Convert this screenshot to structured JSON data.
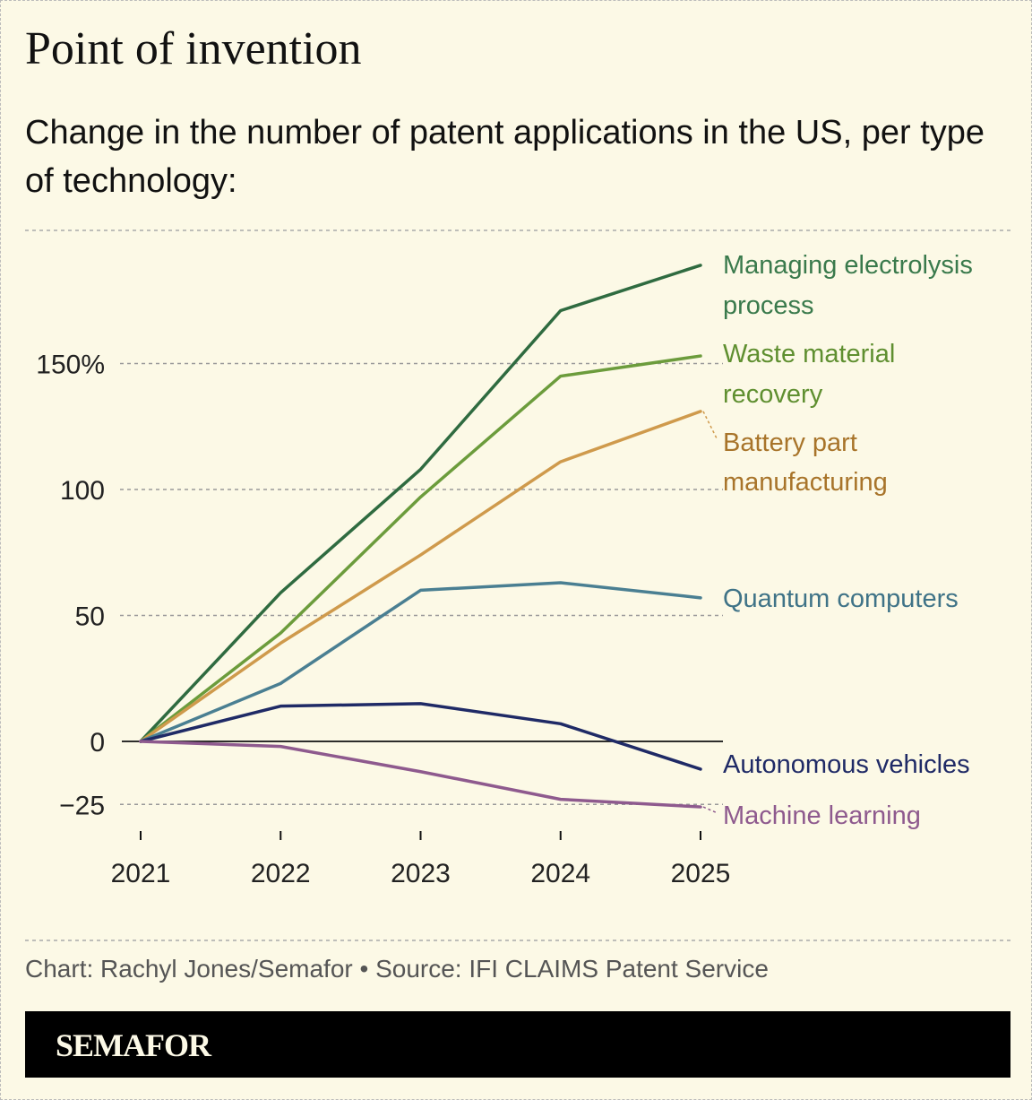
{
  "header": {
    "title": "Point of invention",
    "subtitle": "Change in the number of patent applications in the US, per type of technology:"
  },
  "footer": {
    "credit": "Chart: Rachyl Jones/Semafor • Source: IFI CLAIMS Patent Service",
    "brand": "SEMAFOR"
  },
  "chart_data": {
    "type": "line",
    "title": "Point of invention",
    "xlabel": "",
    "ylabel": "",
    "x": [
      "2021",
      "2022",
      "2023",
      "2024",
      "2025"
    ],
    "ylim": [
      -30,
      200
    ],
    "y_ticks": [
      {
        "value": 150,
        "label": "150%"
      },
      {
        "value": 100,
        "label": "100"
      },
      {
        "value": 50,
        "label": "50"
      },
      {
        "value": 0,
        "label": "0"
      },
      {
        "value": -25,
        "label": "−25"
      }
    ],
    "grid": true,
    "legend": "direct labels at right",
    "series": [
      {
        "name": "Managing electrolysis process",
        "label_lines": [
          "Managing electrolysis",
          "process"
        ],
        "color": "#2f6b40",
        "label_color": "#3a7a4c",
        "values": [
          0,
          59,
          108,
          171,
          189
        ]
      },
      {
        "name": "Waste material recovery",
        "label_lines": [
          "Waste material",
          "recovery"
        ],
        "color": "#6c9c3c",
        "label_color": "#5f8f30",
        "values": [
          0,
          43,
          97,
          145,
          153
        ]
      },
      {
        "name": "Battery part manufacturing",
        "label_lines": [
          "Battery part",
          "manufacturing"
        ],
        "color": "#cf9a4c",
        "label_color": "#a8742a",
        "values": [
          0,
          39,
          74,
          111,
          131
        ]
      },
      {
        "name": "Quantum computers",
        "label_lines": [
          "Quantum computers"
        ],
        "color": "#4a7f92",
        "label_color": "#3f7387",
        "values": [
          0,
          23,
          60,
          63,
          57
        ]
      },
      {
        "name": "Autonomous vehicles",
        "label_lines": [
          "Autonomous vehicles"
        ],
        "color": "#1f2a66",
        "label_color": "#1f2a66",
        "values": [
          0,
          14,
          15,
          7,
          -11
        ]
      },
      {
        "name": "Machine learning",
        "label_lines": [
          "Machine learning"
        ],
        "color": "#8e5a8e",
        "label_color": "#8e5a8e",
        "values": [
          0,
          -2,
          -12,
          -23,
          -26
        ]
      }
    ]
  }
}
